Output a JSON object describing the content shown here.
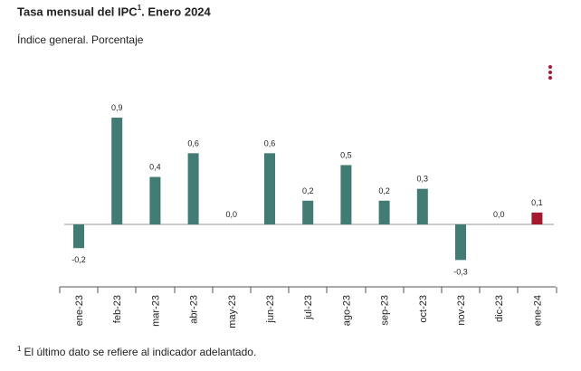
{
  "header": {
    "title_prefix": "Tasa mensual del IPC",
    "title_sup": "1",
    "title_suffix": ". Enero 2024",
    "subtitle": "Índice general. Porcentaje"
  },
  "menu": {
    "icon": "vertical-ellipsis-icon",
    "color": "#a6182d"
  },
  "footnote": {
    "marker": "1",
    "text": "El último dato se refiere al indicador adelantado."
  },
  "chart_data": {
    "type": "bar",
    "categories": [
      "ene-23",
      "feb-23",
      "mar-23",
      "abr-23",
      "may-23",
      "jun-23",
      "jul-23",
      "ago-23",
      "sep-23",
      "oct-23",
      "nov-23",
      "dic-23",
      "ene-24"
    ],
    "values": [
      -0.2,
      0.9,
      0.4,
      0.6,
      0.0,
      0.6,
      0.2,
      0.5,
      0.2,
      0.3,
      -0.3,
      0.0,
      0.1
    ],
    "value_labels": [
      "-0,2",
      "0,9",
      "0,4",
      "0,6",
      "0,0",
      "0,6",
      "0,2",
      "0,5",
      "0,2",
      "0,3",
      "-0,3",
      "0,0",
      "0,1"
    ],
    "colors": {
      "default": "#417b73",
      "highlight": "#a6182d",
      "zero_line": "#999999",
      "axis": "#555555"
    },
    "highlight_index": 12,
    "ylim": [
      -0.3,
      0.9
    ],
    "grid": false,
    "legend": "none"
  }
}
